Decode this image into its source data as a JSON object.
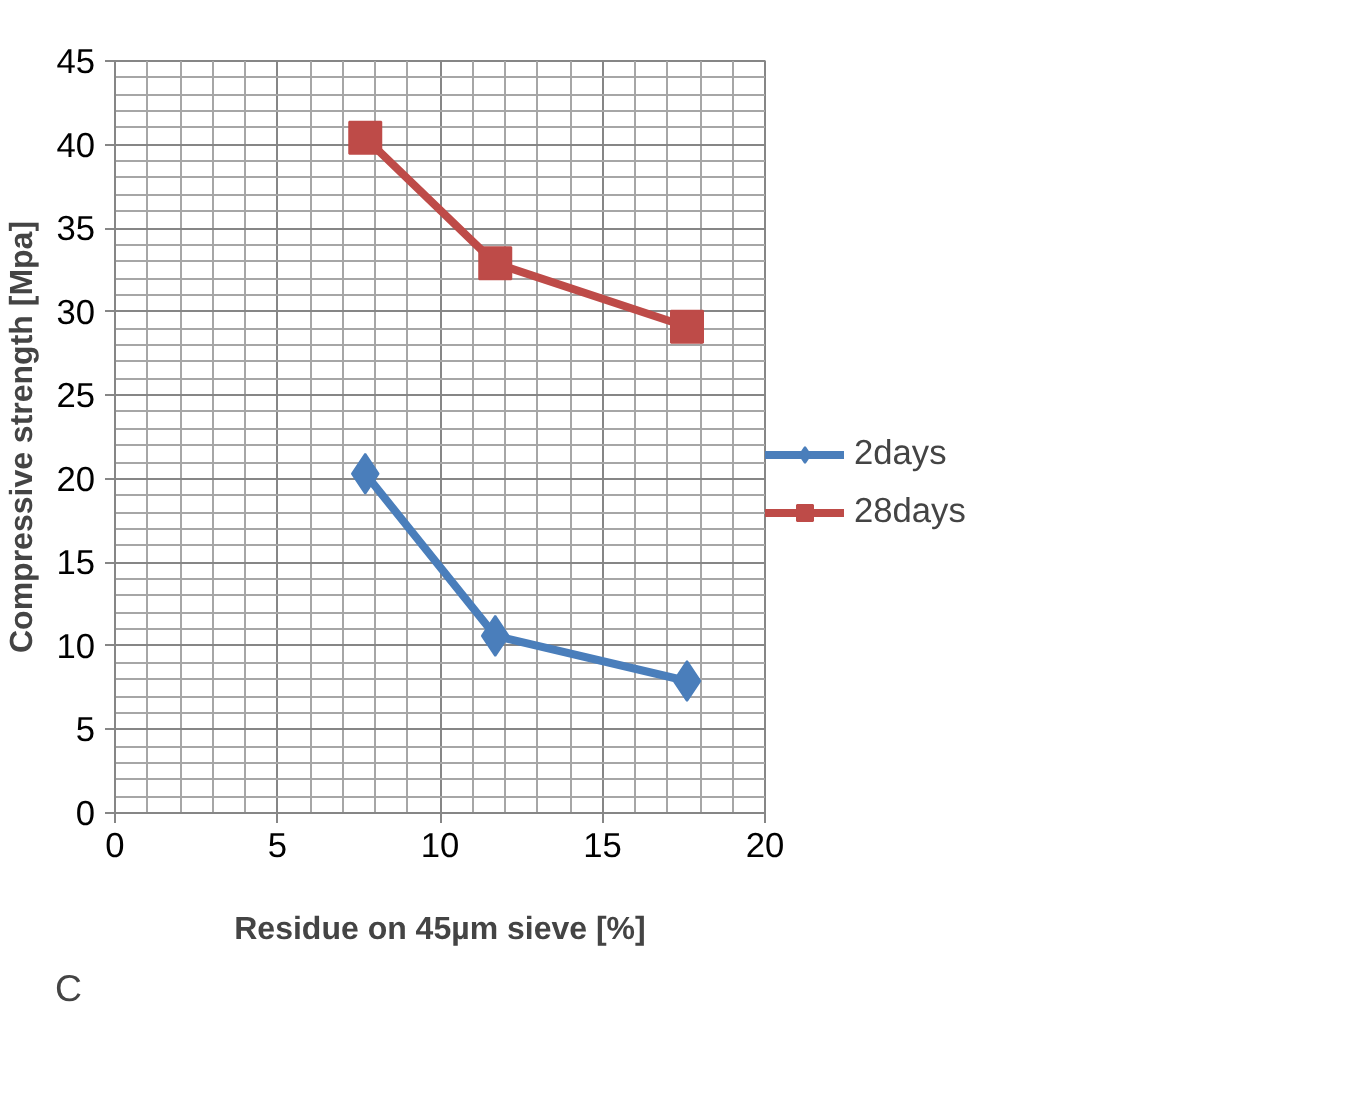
{
  "chart_data": {
    "type": "line",
    "xlabel": "Residue on 45µm sieve [%]",
    "ylabel": "Compressive strength [Mpa]",
    "x": [
      7.7,
      11.7,
      17.6
    ],
    "series": [
      {
        "name": "2days",
        "color": "#4a7ebb",
        "values": [
          20.3,
          10.6,
          7.9
        ],
        "marker": "diamond"
      },
      {
        "name": "28days",
        "color": "#be4b48",
        "values": [
          40.4,
          32.9,
          29.1
        ],
        "marker": "square"
      }
    ],
    "xlim": [
      0,
      20
    ],
    "xticks": [
      0,
      5,
      10,
      15,
      20
    ],
    "ylim": [
      0,
      45
    ],
    "yticks": [
      0,
      5,
      10,
      15,
      20,
      25,
      30,
      35,
      40,
      45
    ],
    "grid": true,
    "legend": "right",
    "line_style": "solid",
    "annotations": [
      "C"
    ]
  }
}
